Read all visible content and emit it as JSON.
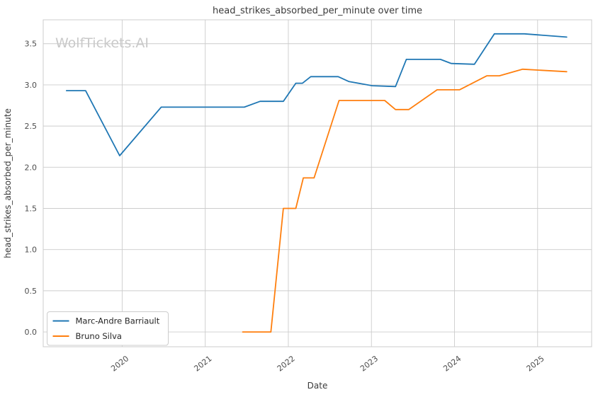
{
  "chart_data": {
    "type": "line",
    "title": "head_strikes_absorbed_per_minute over time",
    "xlabel": "Date",
    "ylabel": "head_strikes_absorbed_per_minute",
    "watermark": "WolfTickets.AI",
    "grid": true,
    "legend_position": "lower-left",
    "xlim": [
      2019.05,
      2025.65
    ],
    "ylim": [
      -0.18,
      3.79
    ],
    "x_ticks": [
      "2020",
      "2021",
      "2022",
      "2023",
      "2024",
      "2025"
    ],
    "x_tick_values": [
      2020,
      2021,
      2022,
      2023,
      2024,
      2025
    ],
    "y_ticks": [
      "0.0",
      "0.5",
      "1.0",
      "1.5",
      "2.0",
      "2.5",
      "3.0",
      "3.5"
    ],
    "y_tick_values": [
      0.0,
      0.5,
      1.0,
      1.5,
      2.0,
      2.5,
      3.0,
      3.5
    ],
    "colors": {
      "grid": "#cccccc",
      "frame": "#cccccc",
      "text": "#3a3a3a",
      "tick_text": "#4d4d4d",
      "watermark": "#c9c9c9",
      "legend_border": "#cccccc",
      "legend_text": "#262626"
    },
    "series": [
      {
        "name": "Marc-Andre Barriault",
        "color": "#1f77b4",
        "points": [
          [
            2019.33,
            2.93
          ],
          [
            2019.56,
            2.93
          ],
          [
            2019.97,
            2.14
          ],
          [
            2020.47,
            2.73
          ],
          [
            2021.47,
            2.73
          ],
          [
            2021.66,
            2.8
          ],
          [
            2021.94,
            2.8
          ],
          [
            2022.09,
            3.02
          ],
          [
            2022.17,
            3.02
          ],
          [
            2022.27,
            3.1
          ],
          [
            2022.6,
            3.1
          ],
          [
            2022.73,
            3.04
          ],
          [
            2023.01,
            2.99
          ],
          [
            2023.29,
            2.98
          ],
          [
            2023.42,
            3.31
          ],
          [
            2023.83,
            3.31
          ],
          [
            2023.96,
            3.26
          ],
          [
            2024.24,
            3.25
          ],
          [
            2024.48,
            3.62
          ],
          [
            2024.84,
            3.62
          ],
          [
            2025.35,
            3.58
          ]
        ]
      },
      {
        "name": "Bruno Silva",
        "color": "#ff7f0e",
        "points": [
          [
            2021.45,
            0.0
          ],
          [
            2021.79,
            0.0
          ],
          [
            2021.94,
            1.5
          ],
          [
            2022.09,
            1.5
          ],
          [
            2022.18,
            1.87
          ],
          [
            2022.31,
            1.87
          ],
          [
            2022.61,
            2.81
          ],
          [
            2023.16,
            2.81
          ],
          [
            2023.29,
            2.7
          ],
          [
            2023.45,
            2.7
          ],
          [
            2023.79,
            2.94
          ],
          [
            2024.06,
            2.94
          ],
          [
            2024.39,
            3.11
          ],
          [
            2024.54,
            3.11
          ],
          [
            2024.82,
            3.19
          ],
          [
            2025.35,
            3.16
          ]
        ]
      }
    ]
  }
}
